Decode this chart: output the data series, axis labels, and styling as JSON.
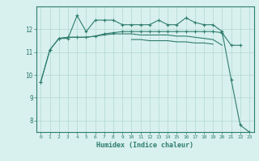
{
  "xlabel": "Humidex (Indice chaleur)",
  "x": [
    0,
    1,
    2,
    3,
    4,
    5,
    6,
    7,
    8,
    9,
    10,
    11,
    12,
    13,
    14,
    15,
    16,
    17,
    18,
    19,
    20,
    21,
    22,
    23
  ],
  "series1": [
    9.7,
    11.1,
    11.6,
    11.6,
    12.6,
    11.9,
    12.4,
    12.4,
    12.4,
    12.2,
    12.2,
    12.2,
    12.2,
    12.4,
    12.2,
    12.2,
    12.5,
    12.3,
    12.2,
    12.2,
    11.9,
    9.8,
    7.8,
    7.5
  ],
  "series2": [
    9.7,
    11.1,
    11.6,
    11.65,
    11.65,
    11.65,
    11.7,
    11.8,
    11.85,
    11.9,
    11.9,
    11.9,
    11.9,
    11.9,
    11.9,
    11.9,
    11.9,
    11.9,
    11.9,
    11.9,
    11.85,
    11.3,
    11.3,
    null
  ],
  "series3": [
    null,
    null,
    11.6,
    11.65,
    11.65,
    11.65,
    11.7,
    11.75,
    11.8,
    11.8,
    11.8,
    11.75,
    11.75,
    11.75,
    11.75,
    11.7,
    11.7,
    11.65,
    11.6,
    11.55,
    11.3,
    null,
    null,
    null
  ],
  "series4": [
    null,
    null,
    null,
    null,
    null,
    null,
    null,
    null,
    null,
    null,
    11.55,
    11.55,
    11.5,
    11.5,
    11.5,
    11.45,
    11.45,
    11.4,
    11.4,
    11.35,
    null,
    null,
    null,
    null
  ],
  "line_color": "#2e7d6e",
  "bg_color": "#d8f0ee",
  "grid_color": "#b0d8d0",
  "tick_color": "#2e7d6e",
  "ylim": [
    7.5,
    13.0
  ],
  "yticks": [
    8,
    9,
    10,
    11,
    12
  ],
  "xticks": [
    0,
    1,
    2,
    3,
    4,
    5,
    6,
    7,
    8,
    9,
    10,
    11,
    12,
    13,
    14,
    15,
    16,
    17,
    18,
    19,
    20,
    21,
    22,
    23
  ]
}
